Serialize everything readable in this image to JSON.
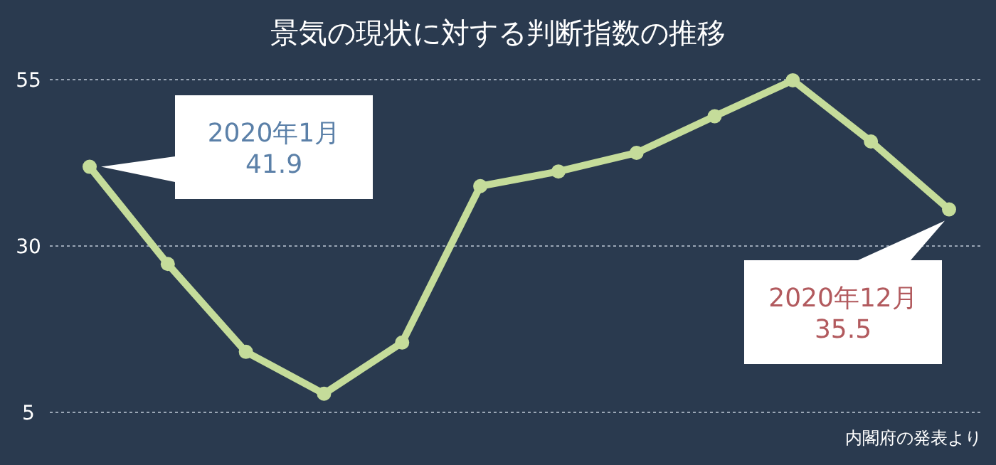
{
  "chart_data": {
    "type": "line",
    "title": "景気の現状に対する判断指数の推移",
    "categories": [
      null,
      null,
      null,
      null,
      null,
      null,
      null,
      null,
      null,
      null,
      null,
      null
    ],
    "series": [
      {
        "color": "#c5dc9a",
        "values": [
          41.9,
          27.3,
          14.1,
          7.8,
          15.5,
          39.0,
          41.2,
          44.0,
          49.5,
          54.9,
          45.7,
          35.5
        ]
      }
    ],
    "ylim": [
      5,
      55
    ],
    "yticks": [
      5,
      30,
      55
    ],
    "grid": "y",
    "marker": "circle",
    "line_style": "solid",
    "annotations": [
      "2020年1月\n41.9",
      "2020年12月\n35.5",
      "内閣府の発表より"
    ]
  }
}
